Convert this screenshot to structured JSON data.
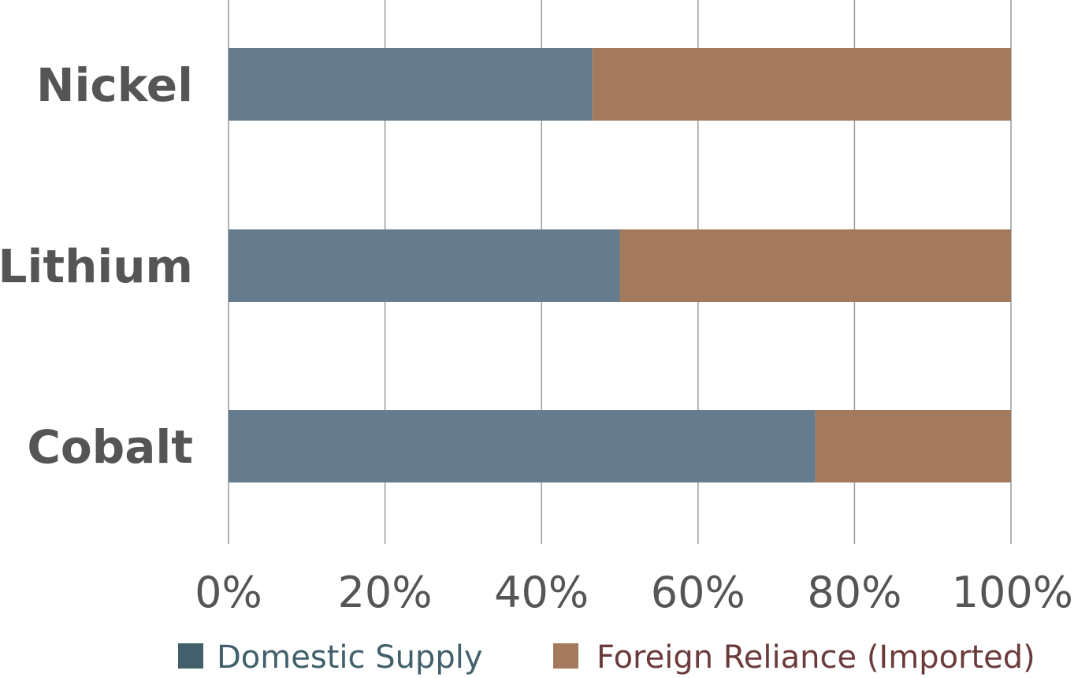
{
  "chart_data": {
    "type": "bar",
    "orientation": "horizontal",
    "stacked": true,
    "categories": [
      "Nickel",
      "Lithium",
      "Cobalt"
    ],
    "series": [
      {
        "name": "Domestic Supply",
        "color": "#667b8b",
        "legend_color": "#41606b",
        "values": [
          46.5,
          50,
          75
        ]
      },
      {
        "name": "Foreign Reliance (Imported)",
        "color": "#a37b5c",
        "legend_color": "#6b3b3b",
        "values": [
          53.5,
          50,
          25
        ]
      }
    ],
    "xlim": [
      0,
      100
    ],
    "xticks": [
      "0%",
      "20%",
      "40%",
      "60%",
      "80%",
      "100%"
    ],
    "title": "",
    "xlabel": "",
    "ylabel": "",
    "grid": true,
    "legend_position": "bottom"
  }
}
